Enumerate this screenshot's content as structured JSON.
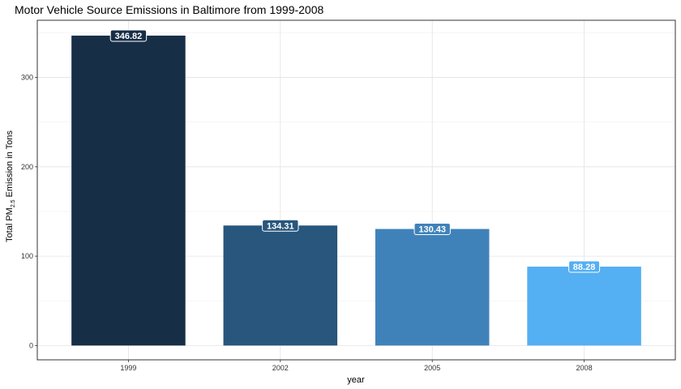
{
  "chart_data": {
    "type": "bar",
    "title": "Motor Vehicle Source Emissions in Baltimore from 1999-2008",
    "xlabel": "year",
    "ylabel": {
      "prefix": "Total PM",
      "subscript": "2.5",
      "suffix": " Emission in Tons"
    },
    "categories": [
      "1999",
      "2002",
      "2005",
      "2008"
    ],
    "values": [
      346.82,
      134.31,
      130.43,
      88.28
    ],
    "data_labels": [
      "346.82",
      "134.31",
      "130.43",
      "88.28"
    ],
    "colors": [
      "#172e47",
      "#28567d",
      "#3f82ba",
      "#55aff3"
    ],
    "ylim": [
      -16,
      364
    ],
    "yticks": [
      0,
      100,
      200,
      300
    ],
    "grid": true,
    "legend": "none"
  }
}
